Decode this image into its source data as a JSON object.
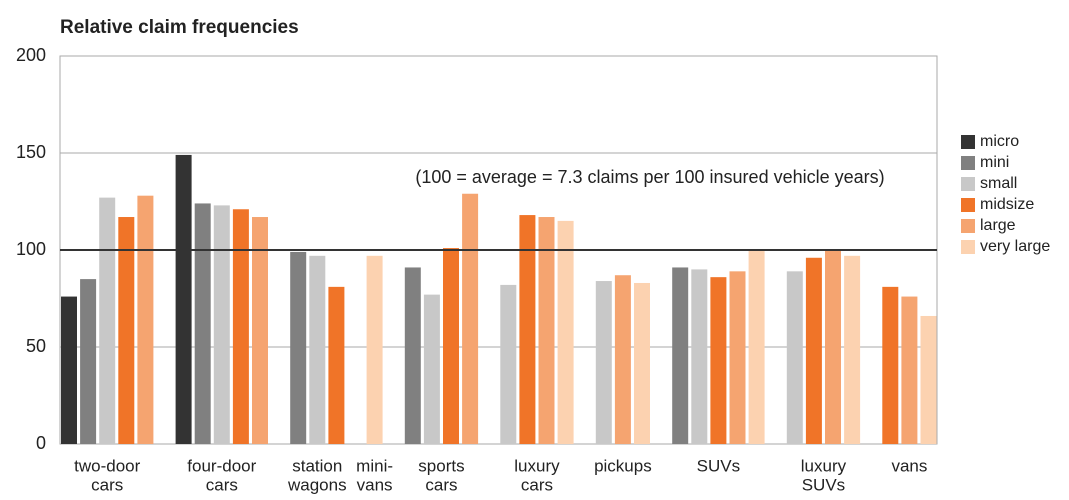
{
  "chart_data": {
    "type": "bar",
    "title": "Relative claim frequencies",
    "annotation": "(100 = average = 7.3 claims per 100 insured vehicle years)",
    "reference_line": 100,
    "categories": [
      [
        "two-door",
        "cars"
      ],
      [
        "four-door",
        "cars"
      ],
      [
        "station",
        "wagons"
      ],
      [
        "mini-",
        "vans"
      ],
      [
        "sports",
        "cars"
      ],
      [
        "luxury",
        "cars"
      ],
      [
        "pickups"
      ],
      [
        "SUVs"
      ],
      [
        "luxury",
        "SUVs"
      ],
      [
        "vans"
      ]
    ],
    "series": [
      {
        "name": "micro",
        "color": "#333333",
        "values": [
          76,
          149,
          null,
          null,
          null,
          null,
          null,
          null,
          null,
          null
        ]
      },
      {
        "name": "mini",
        "color": "#808080",
        "values": [
          85,
          124,
          99,
          null,
          91,
          null,
          null,
          91,
          null,
          null
        ]
      },
      {
        "name": "small",
        "color": "#c8c8c8",
        "values": [
          127,
          123,
          97,
          null,
          77,
          82,
          84,
          90,
          89,
          null
        ]
      },
      {
        "name": "midsize",
        "color": "#f07428",
        "values": [
          117,
          121,
          81,
          null,
          101,
          118,
          null,
          86,
          96,
          81
        ]
      },
      {
        "name": "large",
        "color": "#f5a470",
        "values": [
          128,
          117,
          null,
          null,
          129,
          117,
          87,
          89,
          100,
          76
        ]
      },
      {
        "name": "very large",
        "color": "#fcd2b0",
        "values": [
          null,
          null,
          null,
          97,
          null,
          115,
          83,
          100,
          97,
          66
        ]
      }
    ],
    "ylim": [
      0,
      200
    ],
    "yticks": [
      0,
      50,
      100,
      150,
      200
    ],
    "grid": true,
    "legend": "right"
  }
}
